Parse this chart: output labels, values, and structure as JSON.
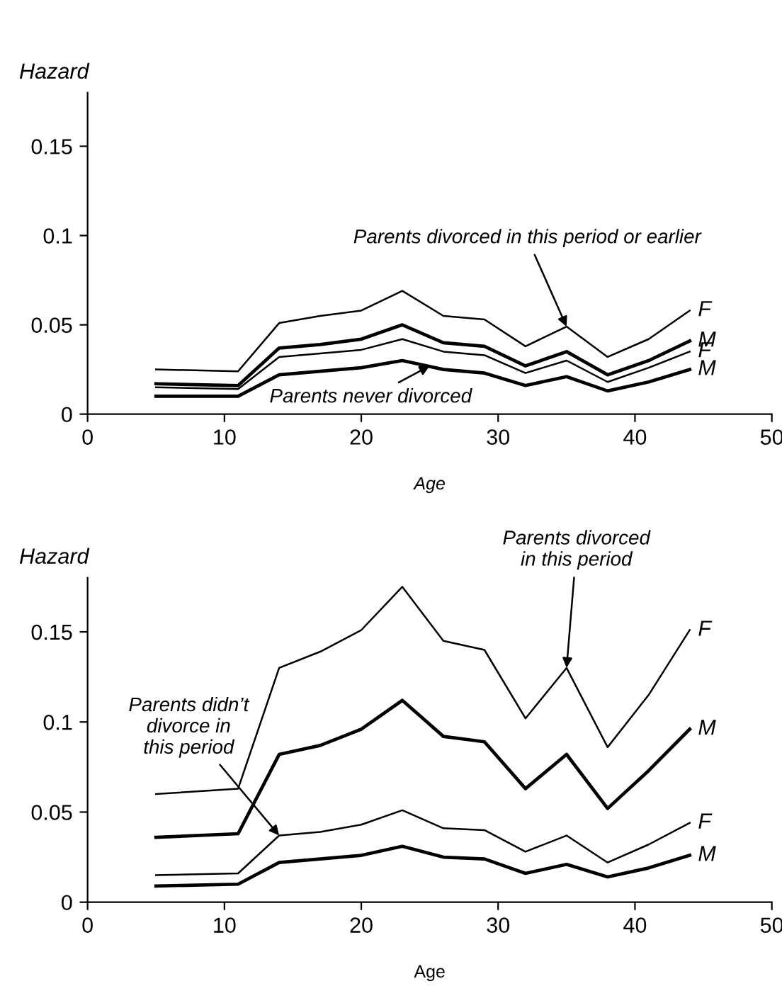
{
  "chart_data": [
    {
      "type": "line",
      "xlabel": "Age",
      "ylabel": "Hazard",
      "xlim": [
        0,
        50
      ],
      "xticks": [
        0,
        10,
        20,
        30,
        40,
        50
      ],
      "ylim": [
        0,
        0.18
      ],
      "yticks": [
        0,
        0.05,
        0.1,
        0.15
      ],
      "x": [
        5,
        11,
        14,
        17,
        20,
        23,
        26,
        29,
        32,
        35,
        38,
        41,
        44
      ],
      "series": [
        {
          "name": "F",
          "color": "#000000",
          "values": [
            0.025,
            0.024,
            0.051,
            0.055,
            0.058,
            0.069,
            0.055,
            0.053,
            0.038,
            0.049,
            0.032,
            0.042,
            0.058
          ]
        },
        {
          "name": "M",
          "color": "#000000",
          "values": [
            0.017,
            0.016,
            0.037,
            0.039,
            0.042,
            0.05,
            0.04,
            0.038,
            0.027,
            0.035,
            0.022,
            0.03,
            0.041
          ]
        },
        {
          "name": "F",
          "color": "#000000",
          "values": [
            0.015,
            0.014,
            0.032,
            0.034,
            0.036,
            0.042,
            0.035,
            0.033,
            0.023,
            0.03,
            0.018,
            0.026,
            0.035
          ]
        },
        {
          "name": "M",
          "color": "#000000",
          "values": [
            0.01,
            0.01,
            0.022,
            0.024,
            0.026,
            0.03,
            0.025,
            0.023,
            0.016,
            0.021,
            0.013,
            0.018,
            0.025
          ]
        }
      ],
      "annotations": [
        {
          "text": "Parents divorced in this period or earlier",
          "x": 35,
          "y": 0.049
        },
        {
          "text": "Parents never divorced",
          "x": 25,
          "y": 0.027
        }
      ]
    },
    {
      "type": "line",
      "xlabel": "Age",
      "ylabel": "Hazard",
      "xlim": [
        0,
        50
      ],
      "xticks": [
        0,
        10,
        20,
        30,
        40,
        50
      ],
      "ylim": [
        0,
        0.18
      ],
      "yticks": [
        0,
        0.05,
        0.1,
        0.15
      ],
      "x": [
        5,
        11,
        14,
        17,
        20,
        23,
        26,
        29,
        32,
        35,
        38,
        41,
        44
      ],
      "series": [
        {
          "name": "F",
          "color": "#000000",
          "values": [
            0.06,
            0.063,
            0.13,
            0.139,
            0.151,
            0.175,
            0.145,
            0.14,
            0.102,
            0.13,
            0.086,
            0.115,
            0.151
          ]
        },
        {
          "name": "M",
          "color": "#000000",
          "values": [
            0.036,
            0.038,
            0.082,
            0.087,
            0.096,
            0.112,
            0.092,
            0.089,
            0.063,
            0.082,
            0.052,
            0.073,
            0.096
          ]
        },
        {
          "name": "F",
          "color": "#000000",
          "values": [
            0.015,
            0.016,
            0.037,
            0.039,
            0.043,
            0.051,
            0.041,
            0.04,
            0.028,
            0.037,
            0.022,
            0.032,
            0.044
          ]
        },
        {
          "name": "M",
          "color": "#000000",
          "values": [
            0.009,
            0.01,
            0.022,
            0.024,
            0.026,
            0.031,
            0.025,
            0.024,
            0.016,
            0.021,
            0.014,
            0.019,
            0.026
          ]
        }
      ],
      "annotations": [
        {
          "text": "Parents divorced\nin this period",
          "x": 35,
          "y": 0.13
        },
        {
          "text": "Parents didn’t\ndivorce in\nthis period",
          "x": 14,
          "y": 0.037
        }
      ]
    }
  ]
}
